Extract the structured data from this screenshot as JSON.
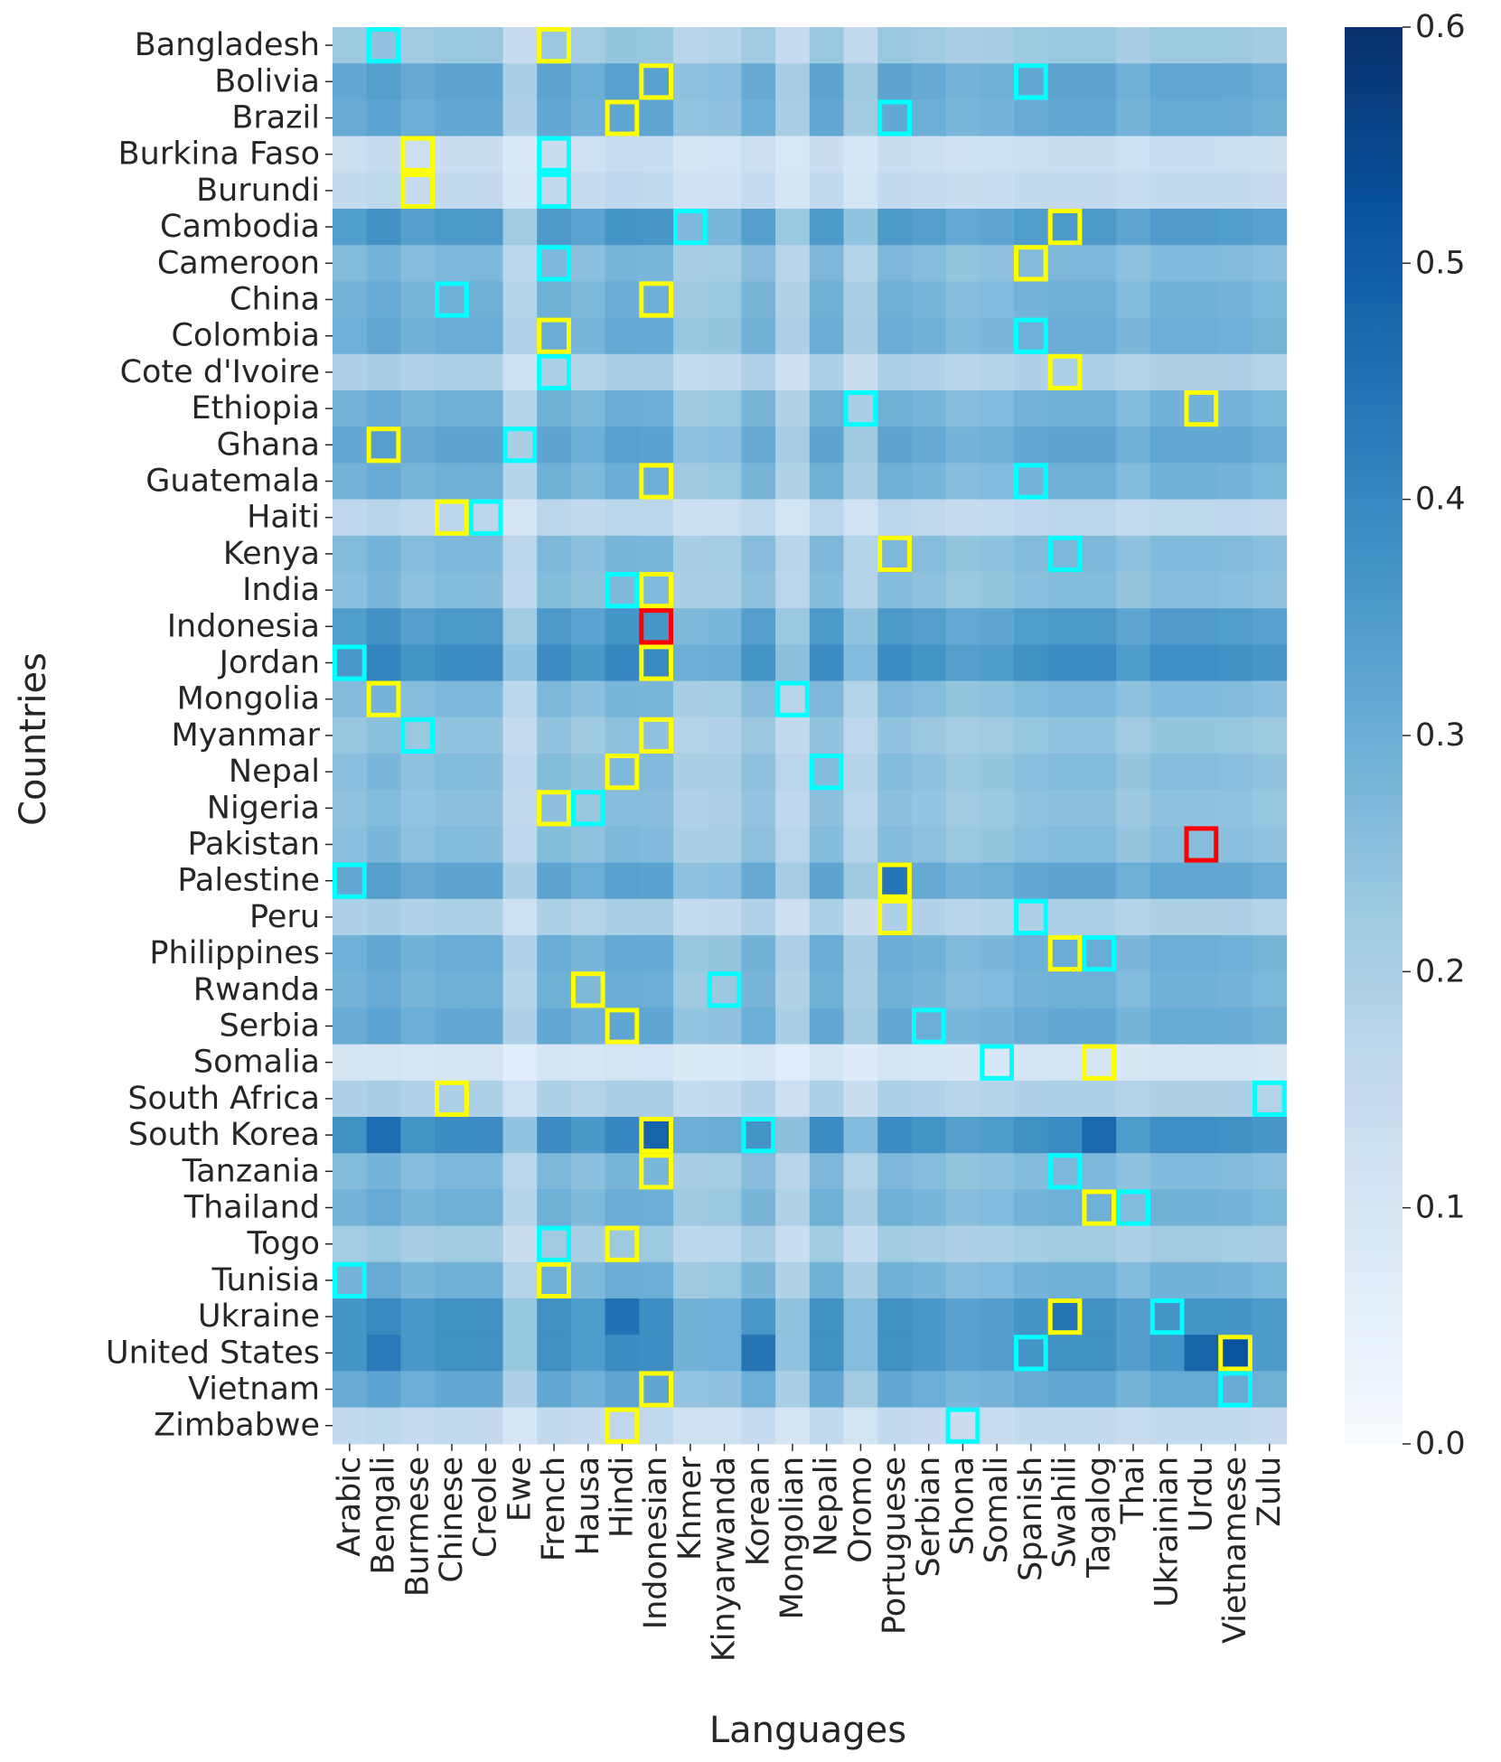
{
  "chart_data": {
    "type": "heatmap",
    "xlabel": "Languages",
    "ylabel": "Countries",
    "colormap": "Blues",
    "vlim": [
      0,
      0.6
    ],
    "colorbar_ticks": [
      0.0,
      0.1,
      0.2,
      0.3,
      0.4,
      0.5,
      0.6
    ],
    "colorbar_tick_labels": [
      "0.0",
      "0.1",
      "0.2",
      "0.3",
      "0.4",
      "0.5",
      "0.6"
    ],
    "rows": [
      "Bangladesh",
      "Bolivia",
      "Brazil",
      "Burkina Faso",
      "Burundi",
      "Cambodia",
      "Cameroon",
      "China",
      "Colombia",
      "Cote d'Ivoire",
      "Ethiopia",
      "Ghana",
      "Guatemala",
      "Haiti",
      "Kenya",
      "India",
      "Indonesia",
      "Jordan",
      "Mongolia",
      "Myanmar",
      "Nepal",
      "Nigeria",
      "Pakistan",
      "Palestine",
      "Peru",
      "Philippines",
      "Rwanda",
      "Serbia",
      "Somalia",
      "South Africa",
      "South Korea",
      "Tanzania",
      "Thailand",
      "Togo",
      "Tunisia",
      "Ukraine",
      "United States",
      "Vietnam",
      "Zimbabwe"
    ],
    "columns": [
      "Arabic",
      "Bengali",
      "Burmese",
      "Chinese",
      "Creole",
      "Ewe",
      "French",
      "Hausa",
      "Hindi",
      "Indonesian",
      "Khmer",
      "Kinyarwanda",
      "Korean",
      "Mongolian",
      "Nepali",
      "Oromo",
      "Portuguese",
      "Serbian",
      "Shona",
      "Somali",
      "Spanish",
      "Swahili",
      "Tagalog",
      "Thai",
      "Ukrainian",
      "Urdu",
      "Vietnamese",
      "Zulu"
    ],
    "row_base": [
      0.22,
      0.31,
      0.3,
      0.13,
      0.15,
      0.34,
      0.26,
      0.28,
      0.29,
      0.19,
      0.28,
      0.31,
      0.28,
      0.16,
      0.26,
      0.25,
      0.34,
      0.37,
      0.26,
      0.23,
      0.25,
      0.24,
      0.25,
      0.31,
      0.19,
      0.29,
      0.28,
      0.3,
      0.1,
      0.19,
      0.37,
      0.26,
      0.28,
      0.21,
      0.28,
      0.36,
      0.36,
      0.3,
      0.15
    ],
    "col_factor": [
      1.02,
      1.1,
      1.0,
      1.05,
      1.05,
      0.65,
      1.05,
      0.97,
      1.08,
      1.07,
      0.8,
      0.82,
      1.0,
      0.68,
      1.05,
      0.72,
      1.05,
      1.0,
      0.92,
      0.95,
      1.02,
      1.05,
      1.05,
      0.95,
      1.03,
      1.03,
      1.02,
      0.98
    ],
    "outliers": [
      {
        "row": "Jordan",
        "col": "Arabic",
        "value": 0.36
      },
      {
        "row": "Palestine",
        "col": "Portuguese",
        "value": 0.44
      },
      {
        "row": "South Korea",
        "col": "Bengali",
        "value": 0.46
      },
      {
        "row": "South Korea",
        "col": "Indonesian",
        "value": 0.48
      },
      {
        "row": "South Korea",
        "col": "Tagalog",
        "value": 0.47
      },
      {
        "row": "Ukraine",
        "col": "Hindi",
        "value": 0.45
      },
      {
        "row": "Ukraine",
        "col": "Swahili",
        "value": 0.44
      },
      {
        "row": "United States",
        "col": "Urdu",
        "value": 0.48
      },
      {
        "row": "United States",
        "col": "Vietnamese",
        "value": 0.52
      },
      {
        "row": "United States",
        "col": "Bengali",
        "value": 0.43
      },
      {
        "row": "United States",
        "col": "Korean",
        "value": 0.44
      }
    ],
    "highlights": {
      "yellow": [
        {
          "row": "Bangladesh",
          "col": "French"
        },
        {
          "row": "Bolivia",
          "col": "Indonesian"
        },
        {
          "row": "Brazil",
          "col": "Hindi"
        },
        {
          "row": "Burkina Faso",
          "col": "Burmese"
        },
        {
          "row": "Burundi",
          "col": "Burmese"
        },
        {
          "row": "Cambodia",
          "col": "Swahili"
        },
        {
          "row": "Cameroon",
          "col": "Spanish"
        },
        {
          "row": "China",
          "col": "Indonesian"
        },
        {
          "row": "Colombia",
          "col": "French"
        },
        {
          "row": "Cote d'Ivoire",
          "col": "Swahili"
        },
        {
          "row": "Ethiopia",
          "col": "Urdu"
        },
        {
          "row": "Ghana",
          "col": "Bengali"
        },
        {
          "row": "Guatemala",
          "col": "Indonesian"
        },
        {
          "row": "Haiti",
          "col": "Chinese"
        },
        {
          "row": "Kenya",
          "col": "Portuguese"
        },
        {
          "row": "India",
          "col": "Indonesian"
        },
        {
          "row": "Jordan",
          "col": "Indonesian"
        },
        {
          "row": "Mongolia",
          "col": "Bengali"
        },
        {
          "row": "Myanmar",
          "col": "Indonesian"
        },
        {
          "row": "Nepal",
          "col": "Hindi"
        },
        {
          "row": "Nigeria",
          "col": "French"
        },
        {
          "row": "Palestine",
          "col": "Portuguese"
        },
        {
          "row": "Peru",
          "col": "Portuguese"
        },
        {
          "row": "Philippines",
          "col": "Swahili"
        },
        {
          "row": "Rwanda",
          "col": "Hausa"
        },
        {
          "row": "Serbia",
          "col": "Hindi"
        },
        {
          "row": "Somalia",
          "col": "Tagalog"
        },
        {
          "row": "South Africa",
          "col": "Chinese"
        },
        {
          "row": "South Korea",
          "col": "Indonesian"
        },
        {
          "row": "Tanzania",
          "col": "Indonesian"
        },
        {
          "row": "Thailand",
          "col": "Tagalog"
        },
        {
          "row": "Togo",
          "col": "Hindi"
        },
        {
          "row": "Tunisia",
          "col": "French"
        },
        {
          "row": "Ukraine",
          "col": "Swahili"
        },
        {
          "row": "United States",
          "col": "Vietnamese"
        },
        {
          "row": "Vietnam",
          "col": "Indonesian"
        },
        {
          "row": "Zimbabwe",
          "col": "Hindi"
        }
      ],
      "cyan": [
        {
          "row": "Bangladesh",
          "col": "Bengali"
        },
        {
          "row": "Bolivia",
          "col": "Spanish"
        },
        {
          "row": "Brazil",
          "col": "Portuguese"
        },
        {
          "row": "Burkina Faso",
          "col": "French"
        },
        {
          "row": "Burundi",
          "col": "French"
        },
        {
          "row": "Cambodia",
          "col": "Khmer"
        },
        {
          "row": "Cameroon",
          "col": "French"
        },
        {
          "row": "China",
          "col": "Chinese"
        },
        {
          "row": "Colombia",
          "col": "Spanish"
        },
        {
          "row": "Cote d'Ivoire",
          "col": "French"
        },
        {
          "row": "Ethiopia",
          "col": "Oromo"
        },
        {
          "row": "Ghana",
          "col": "Ewe"
        },
        {
          "row": "Guatemala",
          "col": "Spanish"
        },
        {
          "row": "Haiti",
          "col": "Creole"
        },
        {
          "row": "Kenya",
          "col": "Swahili"
        },
        {
          "row": "India",
          "col": "Hindi"
        },
        {
          "row": "Jordan",
          "col": "Arabic"
        },
        {
          "row": "Mongolia",
          "col": "Mongolian"
        },
        {
          "row": "Myanmar",
          "col": "Burmese"
        },
        {
          "row": "Nepal",
          "col": "Nepali"
        },
        {
          "row": "Nigeria",
          "col": "Hausa"
        },
        {
          "row": "Palestine",
          "col": "Arabic"
        },
        {
          "row": "Peru",
          "col": "Spanish"
        },
        {
          "row": "Philippines",
          "col": "Tagalog"
        },
        {
          "row": "Rwanda",
          "col": "Kinyarwanda"
        },
        {
          "row": "Serbia",
          "col": "Serbian"
        },
        {
          "row": "Somalia",
          "col": "Somali"
        },
        {
          "row": "South Africa",
          "col": "Zulu"
        },
        {
          "row": "South Korea",
          "col": "Korean"
        },
        {
          "row": "Tanzania",
          "col": "Swahili"
        },
        {
          "row": "Thailand",
          "col": "Thai"
        },
        {
          "row": "Togo",
          "col": "French"
        },
        {
          "row": "Tunisia",
          "col": "Arabic"
        },
        {
          "row": "Ukraine",
          "col": "Ukrainian"
        },
        {
          "row": "United States",
          "col": "Spanish"
        },
        {
          "row": "Vietnam",
          "col": "Vietnamese"
        },
        {
          "row": "Zimbabwe",
          "col": "Shona"
        }
      ],
      "red": [
        {
          "row": "Indonesia",
          "col": "Indonesian"
        },
        {
          "row": "Pakistan",
          "col": "Urdu"
        }
      ]
    },
    "highlight_colors": {
      "yellow": "#ffff00",
      "cyan": "#00ffff",
      "red": "#ff0000"
    }
  }
}
